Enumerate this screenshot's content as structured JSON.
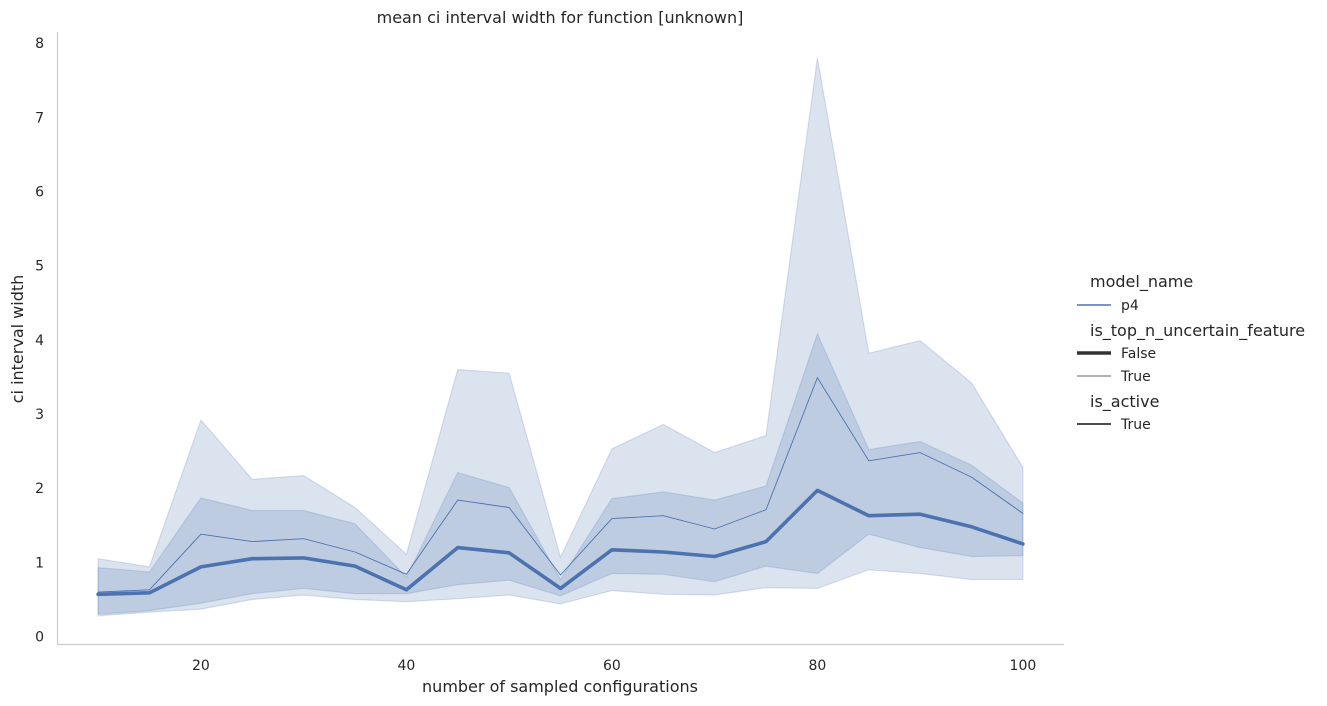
{
  "chart_data": {
    "type": "line",
    "title": "mean ci interval width for function [unknown]",
    "xlabel": "number of sampled configurations",
    "ylabel": "ci interval width",
    "xlim": [
      6,
      104
    ],
    "ylim": [
      -0.1,
      8.15
    ],
    "x_ticks": [
      20,
      40,
      60,
      80,
      100
    ],
    "y_ticks": [
      0,
      1,
      2,
      3,
      4,
      5,
      6,
      7,
      8
    ],
    "grid": false,
    "legend_position": "right",
    "legend": [
      {
        "title": "model_name",
        "entries": [
          {
            "label": "p4",
            "style": "thin"
          }
        ]
      },
      {
        "title": "is_top_n_uncertain_feature",
        "entries": [
          {
            "label": "False",
            "style": "thick"
          },
          {
            "label": "True",
            "style": "hair"
          }
        ]
      },
      {
        "title": "is_active",
        "entries": [
          {
            "label": "True",
            "style": "dark"
          }
        ]
      }
    ],
    "x": [
      10,
      15,
      20,
      25,
      30,
      35,
      40,
      45,
      50,
      55,
      60,
      65,
      70,
      75,
      80,
      85,
      90,
      95,
      100
    ],
    "series": [
      {
        "name": "False",
        "style": "thick",
        "values": [
          0.57,
          0.59,
          0.94,
          1.05,
          1.06,
          0.95,
          0.63,
          1.2,
          1.13,
          0.65,
          1.17,
          1.14,
          1.08,
          1.28,
          1.97,
          1.63,
          1.65,
          1.48,
          1.25
        ],
        "lower": [
          0.3,
          0.35,
          0.45,
          0.58,
          0.65,
          0.58,
          0.58,
          0.7,
          0.76,
          0.55,
          0.85,
          0.84,
          0.74,
          0.95,
          0.85,
          1.38,
          1.2,
          1.08,
          1.09
        ],
        "upper": [
          0.93,
          0.87,
          1.87,
          1.7,
          1.7,
          1.52,
          0.8,
          2.21,
          2.01,
          0.77,
          1.86,
          1.95,
          1.84,
          2.03,
          4.08,
          2.52,
          2.63,
          2.31,
          1.8
        ]
      },
      {
        "name": "True",
        "style": "hair",
        "values": [
          0.6,
          0.63,
          1.38,
          1.28,
          1.32,
          1.14,
          0.84,
          1.84,
          1.74,
          0.83,
          1.59,
          1.63,
          1.45,
          1.71,
          3.49,
          2.37,
          2.48,
          2.15,
          1.66
        ],
        "lower": [
          0.28,
          0.33,
          0.37,
          0.5,
          0.56,
          0.5,
          0.47,
          0.51,
          0.56,
          0.44,
          0.62,
          0.57,
          0.56,
          0.66,
          0.65,
          0.9,
          0.85,
          0.77,
          0.77
        ],
        "upper": [
          1.05,
          0.94,
          2.92,
          2.12,
          2.17,
          1.74,
          1.11,
          3.6,
          3.55,
          1.07,
          2.53,
          2.86,
          2.48,
          2.71,
          7.8,
          3.82,
          3.99,
          3.42,
          2.28
        ]
      }
    ],
    "colors": {
      "line": "#4c72b0",
      "band": "#4c72b0",
      "axis": "#cccccc",
      "text": "#262626",
      "legend_dark": "#333333"
    }
  }
}
